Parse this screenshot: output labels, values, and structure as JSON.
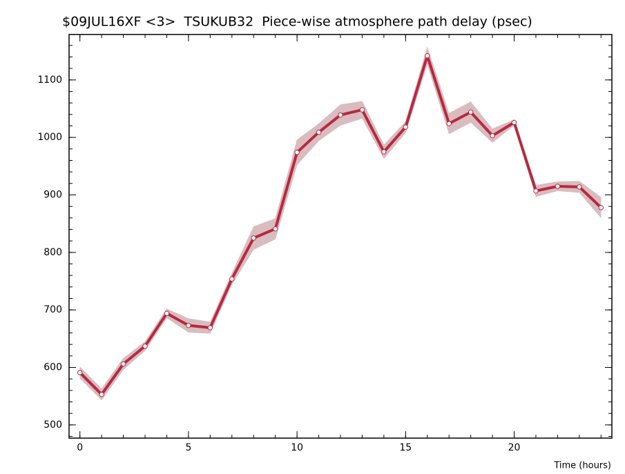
{
  "chart_data": {
    "type": "line",
    "title": "$09JUL16XF <3>  TSUKUB32  Piece-wise atmosphere path delay (psec)",
    "x_label": "Time (hours)",
    "x": [
      0,
      1,
      2,
      3,
      4,
      5,
      6,
      7,
      8,
      9,
      10,
      11,
      12,
      13,
      14,
      15,
      16,
      17,
      18,
      19,
      20,
      21,
      22,
      23,
      24
    ],
    "series": [
      {
        "color": "#b8283f",
        "band_color": "#d8bcc0",
        "values": [
          591,
          553,
          606,
          637,
          694,
          673,
          669,
          754,
          825,
          841,
          974,
          1009,
          1039,
          1048,
          975,
          1018,
          1142,
          1024,
          1044,
          1003,
          1026,
          907,
          915,
          914,
          878
        ],
        "errors": [
          10,
          10,
          10,
          8,
          8,
          12,
          10,
          10,
          20,
          18,
          22,
          15,
          18,
          15,
          12,
          10,
          15,
          18,
          18,
          12,
          5,
          10,
          8,
          10,
          18
        ]
      }
    ],
    "xlim": [
      -0.5,
      24.5
    ],
    "xticks": [
      0,
      5,
      10,
      15,
      20
    ],
    "ylim": [
      477,
      1179
    ],
    "yticks": [
      500,
      600,
      700,
      800,
      900,
      1000,
      1100
    ]
  }
}
